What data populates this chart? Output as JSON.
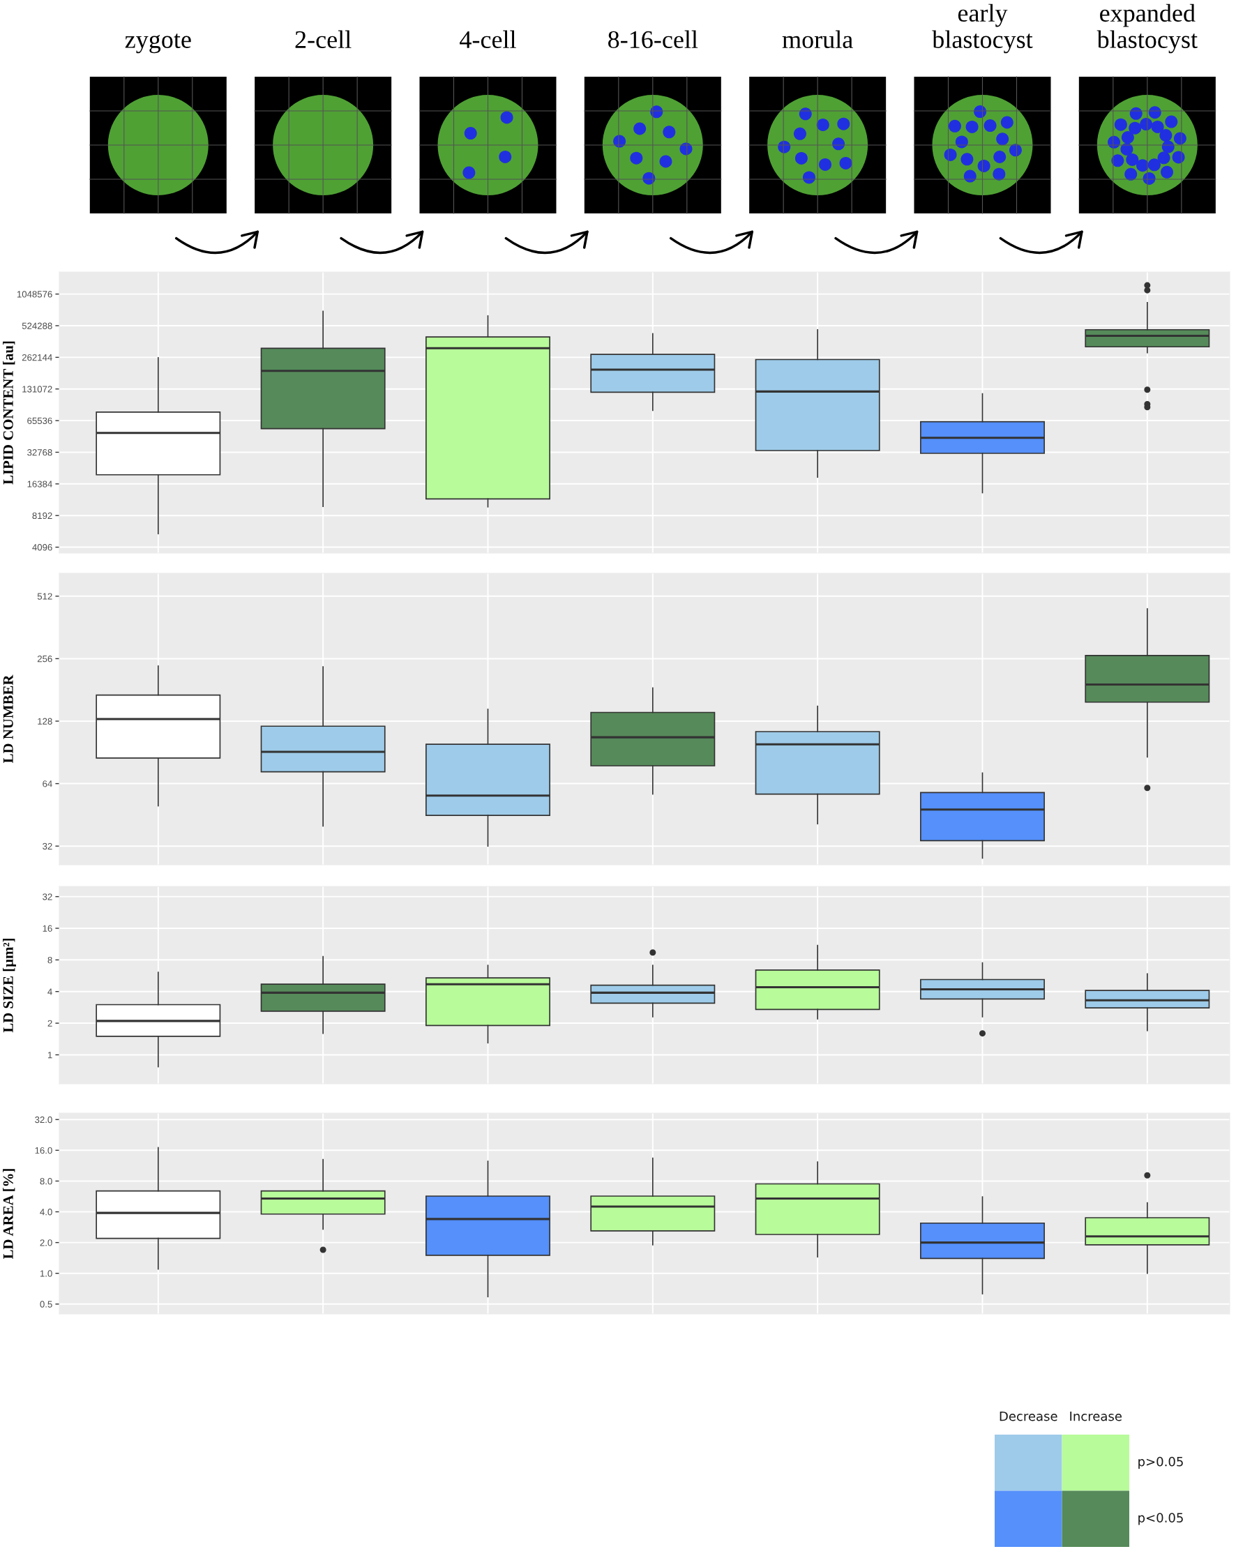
{
  "chart_data": [
    {
      "type": "other",
      "categories": [
        "zygote",
        "2-cell",
        "4-cell",
        "8-16-cell",
        "morula",
        "early\nblastocyst",
        "expanded\nblastocyst"
      ]
    },
    {
      "type": "box",
      "ylabel": "LIPID CONTENT [au]",
      "categories": [
        null,
        null,
        null,
        null,
        null,
        null,
        null
      ],
      "colors": [
        "#ffffff",
        "#568a5a",
        "#b8fb9a",
        "#9ecbe9",
        "#9ecbe9",
        "#5590fb",
        "#568a5a"
      ],
      "boxes": [
        {
          "low": 5500,
          "q1": 20000,
          "median": 50000,
          "q3": 79000,
          "high": 260000
        },
        {
          "low": 10000,
          "q1": 55000,
          "median": 195000,
          "q3": 320000,
          "high": 720000
        },
        {
          "low": 9900,
          "q1": 11800,
          "median": 320000,
          "q3": 410000,
          "high": 650000
        },
        {
          "low": 82000,
          "q1": 122000,
          "median": 200000,
          "q3": 280000,
          "high": 440000
        },
        {
          "low": 19000,
          "q1": 34000,
          "median": 124000,
          "q3": 250000,
          "high": 480000
        },
        {
          "low": 13500,
          "q1": 32000,
          "median": 45000,
          "q3": 64000,
          "high": 118000
        },
        {
          "low": 290000,
          "q1": 330000,
          "median": 420000,
          "q3": 480000,
          "high": 870000,
          "outliers": [
            1270000,
            1140000,
            129000,
            94000,
            88000
          ]
        }
      ],
      "log": "y",
      "ylim": [
        3600,
        1700000
      ],
      "yticks": [
        4096,
        8192,
        16384,
        32768,
        65536,
        131072,
        262144,
        524288,
        1048576
      ],
      "grid": true,
      "tick_labels": "y"
    },
    {
      "type": "box",
      "ylabel": "LD NUMBER",
      "categories": [
        null,
        null,
        null,
        null,
        null,
        null,
        null
      ],
      "colors": [
        "#ffffff",
        "#9ecbe9",
        "#9ecbe9",
        "#568a5a",
        "#9ecbe9",
        "#5590fb",
        "#568a5a"
      ],
      "boxes": [
        {
          "low": 50,
          "q1": 85,
          "median": 131,
          "q3": 171,
          "high": 236
        },
        {
          "low": 40,
          "q1": 73,
          "median": 91,
          "q3": 121,
          "high": 234
        },
        {
          "low": 32,
          "q1": 45,
          "median": 56,
          "q3": 99,
          "high": 146
        },
        {
          "low": 57,
          "q1": 78,
          "median": 107,
          "q3": 141,
          "high": 185
        },
        {
          "low": 41,
          "q1": 57,
          "median": 99,
          "q3": 114,
          "high": 151
        },
        {
          "low": 28,
          "q1": 34,
          "median": 48,
          "q3": 58,
          "high": 72
        },
        {
          "low": 86,
          "q1": 158,
          "median": 192,
          "q3": 265,
          "high": 445,
          "outliers": [
            61
          ]
        }
      ],
      "log": "y",
      "ylim": [
        26,
        660
      ],
      "yticks": [
        32,
        64,
        128,
        256,
        512
      ],
      "grid": true,
      "tick_labels": "y"
    },
    {
      "type": "box",
      "ylabel": "LD SIZE [µm²]",
      "categories": [
        null,
        null,
        null,
        null,
        null,
        null,
        null
      ],
      "colors": [
        "#ffffff",
        "#568a5a",
        "#b8fb9a",
        "#9ecbe9",
        "#b8fb9a",
        "#9ecbe9",
        "#9ecbe9"
      ],
      "boxes": [
        {
          "low": 0.77,
          "q1": 1.5,
          "median": 2.1,
          "q3": 3.0,
          "high": 6.1
        },
        {
          "low": 1.6,
          "q1": 2.6,
          "median": 3.9,
          "q3": 4.7,
          "high": 8.6
        },
        {
          "low": 1.3,
          "q1": 1.9,
          "median": 4.7,
          "q3": 5.4,
          "high": 7.1
        },
        {
          "low": 2.3,
          "q1": 3.1,
          "median": 3.9,
          "q3": 4.6,
          "high": 7.1,
          "outliers": [
            9.4
          ]
        },
        {
          "low": 2.2,
          "q1": 2.7,
          "median": 4.4,
          "q3": 6.4,
          "high": 11
        },
        {
          "low": 2.3,
          "q1": 3.4,
          "median": 4.2,
          "q3": 5.2,
          "high": 7.5,
          "outliers": [
            1.6
          ]
        },
        {
          "low": 1.7,
          "q1": 2.8,
          "median": 3.3,
          "q3": 4.1,
          "high": 5.9
        }
      ],
      "log": "y",
      "ylim": [
        0.53,
        40
      ],
      "yticks": [
        1,
        2,
        4,
        8,
        16,
        32
      ],
      "grid": true,
      "tick_labels": "y"
    },
    {
      "type": "box",
      "ylabel": "LD AREA [%]",
      "categories": [
        null,
        null,
        null,
        null,
        null,
        null,
        null
      ],
      "colors": [
        "#ffffff",
        "#b8fb9a",
        "#5590fb",
        "#b8fb9a",
        "#b8fb9a",
        "#5590fb",
        "#b8fb9a"
      ],
      "boxes": [
        {
          "low": 1.1,
          "q1": 2.2,
          "median": 3.9,
          "q3": 6.4,
          "high": 17
        },
        {
          "low": 2.7,
          "q1": 3.8,
          "median": 5.4,
          "q3": 6.4,
          "high": 13,
          "outliers": [
            1.7
          ]
        },
        {
          "low": 0.59,
          "q1": 1.5,
          "median": 3.4,
          "q3": 5.7,
          "high": 12.5
        },
        {
          "low": 1.9,
          "q1": 2.6,
          "median": 4.5,
          "q3": 5.7,
          "high": 13.4
        },
        {
          "low": 1.45,
          "q1": 2.4,
          "median": 5.4,
          "q3": 7.5,
          "high": 12.3
        },
        {
          "low": 0.63,
          "q1": 1.4,
          "median": 2.0,
          "q3": 3.1,
          "high": 5.6
        },
        {
          "low": 1.0,
          "q1": 1.9,
          "median": 2.3,
          "q3": 3.5,
          "high": 4.9,
          "outliers": [
            9.1
          ]
        }
      ],
      "log": "y",
      "ylim": [
        0.4,
        37
      ],
      "yticks": [
        0.5,
        {
          "value": 1,
          "label": "1.0"
        },
        {
          "value": 2,
          "label": "2.0"
        },
        {
          "value": 4,
          "label": "4.0"
        },
        {
          "value": 8,
          "label": "8.0"
        },
        {
          "value": 16,
          "label": "16.0"
        },
        {
          "value": 32,
          "label": "32.0"
        }
      ],
      "grid": true,
      "tick_labels": "y"
    },
    {
      "type": "other",
      "categories": [
        "Decrease",
        "Increase"
      ],
      "y_categories": [
        "p>0.05",
        "p<0.05"
      ],
      "colors": [
        "#9ecbe9",
        "#b8fb9a",
        "#5590fb",
        "#568a5a"
      ]
    }
  ]
}
